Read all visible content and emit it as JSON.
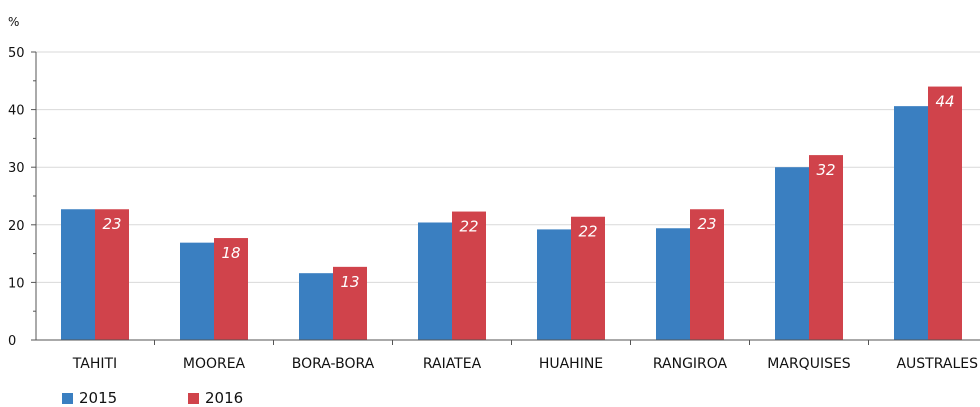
{
  "chart_data": {
    "type": "bar",
    "unit": "%",
    "categories": [
      "TAHITI",
      "MOOREA",
      "BORA-BORA",
      "RAIATEA",
      "HUAHINE",
      "RANGIROA",
      "MARQUISES",
      "AUSTRALES"
    ],
    "series": [
      {
        "name": "2015",
        "color": "#3a7fc1",
        "values": [
          22.7,
          16.9,
          11.6,
          20.4,
          19.2,
          19.4,
          30.0,
          40.6
        ]
      },
      {
        "name": "2016",
        "color": "#d0434b",
        "values": [
          22.7,
          17.7,
          12.7,
          22.3,
          21.4,
          22.7,
          32.1,
          44.0
        ]
      }
    ],
    "data_labels": {
      "2016": [
        "23",
        "18",
        "13",
        "22",
        "22",
        "23",
        "32",
        "44"
      ]
    },
    "ylim": [
      0,
      50
    ],
    "yticks": [
      0,
      10,
      20,
      30,
      40,
      50
    ],
    "grid": true,
    "legend_position": "bottom-left"
  }
}
